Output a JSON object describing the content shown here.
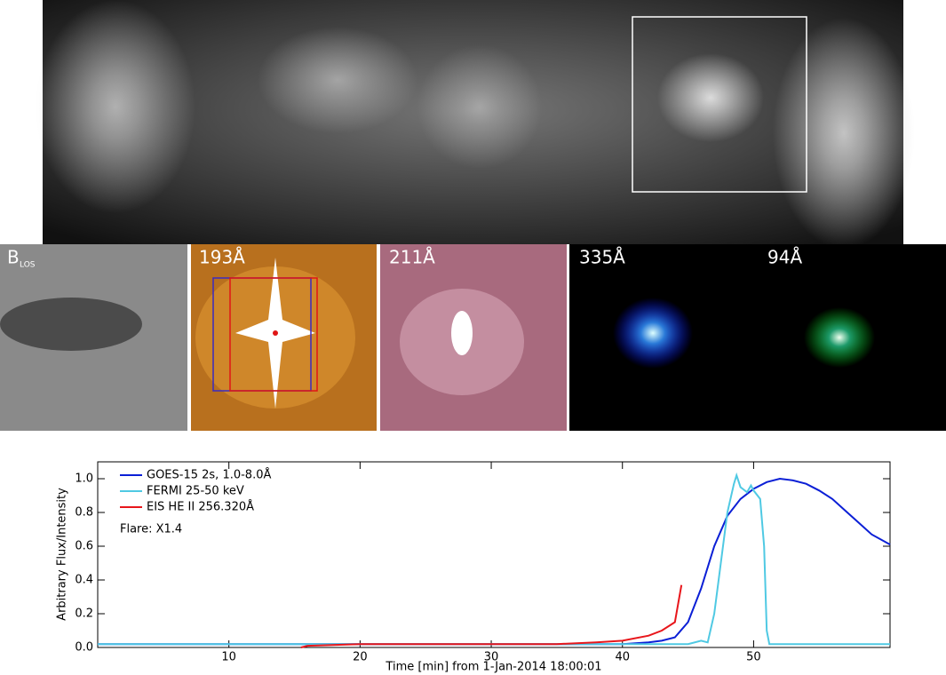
{
  "panels": [
    {
      "label": "B",
      "subscript": "LOS"
    },
    {
      "label": "193Å"
    },
    {
      "label": "211Å"
    },
    {
      "label": "335Å"
    },
    {
      "label": "94Å"
    }
  ],
  "chart_data": {
    "type": "line",
    "ylabel": "Arbitrary Flux/Intensity",
    "xlabel": "Time [min] from 1-Jan-2014 18:00:01",
    "annotation": "Flare: X1.4",
    "xlim": [
      0,
      60.4
    ],
    "ylim": [
      0,
      1.1
    ],
    "xticks": [
      10,
      20,
      30,
      40,
      50
    ],
    "yticks": [
      {
        "value": 0,
        "label": "0.0"
      },
      0.2,
      0.4,
      0.6,
      0.8,
      {
        "value": 1,
        "label": "1.0"
      }
    ],
    "legend": "upper left",
    "series": [
      {
        "name": "GOES-15 2s, 1.0-8.0Å",
        "color": "#0b1fd6",
        "x": [
          0,
          10,
          20,
          30,
          40,
          42,
          43,
          44,
          45,
          46,
          47,
          48,
          49,
          50,
          51,
          52,
          53,
          54,
          55,
          56,
          57,
          58,
          59,
          60.4
        ],
        "values": [
          0.02,
          0.02,
          0.02,
          0.02,
          0.02,
          0.03,
          0.04,
          0.06,
          0.15,
          0.35,
          0.6,
          0.78,
          0.88,
          0.94,
          0.98,
          1.0,
          0.99,
          0.97,
          0.93,
          0.88,
          0.81,
          0.74,
          0.67,
          0.61
        ]
      },
      {
        "name": "FERMI 25-50 keV",
        "color": "#4fc9e3",
        "x": [
          0,
          10,
          20,
          30,
          40,
          45,
          46,
          46.5,
          47,
          47.5,
          48,
          48.5,
          48.7,
          49,
          49.5,
          49.8,
          50,
          50.5,
          50.8,
          51,
          51.2,
          55,
          60.4
        ],
        "values": [
          0.02,
          0.02,
          0.02,
          0.02,
          0.02,
          0.02,
          0.04,
          0.03,
          0.2,
          0.5,
          0.8,
          0.97,
          1.02,
          0.95,
          0.92,
          0.96,
          0.93,
          0.88,
          0.6,
          0.1,
          0.02,
          0.02,
          0.02
        ]
      },
      {
        "name": "EIS  HE II 256.320Å",
        "color": "#e8161b",
        "x": [
          15.5,
          16,
          20,
          30,
          35,
          38,
          40,
          42,
          43,
          44,
          44.5
        ],
        "values": [
          0,
          0.01,
          0.02,
          0.02,
          0.02,
          0.03,
          0.04,
          0.07,
          0.1,
          0.15,
          0.37
        ]
      }
    ]
  }
}
